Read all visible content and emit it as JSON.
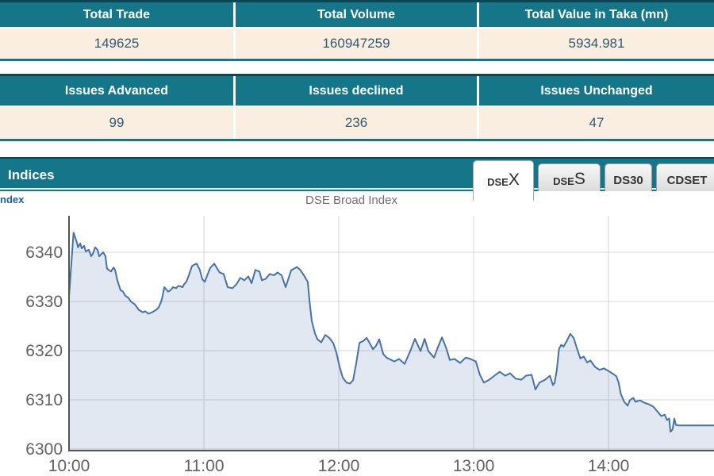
{
  "summary_table_1": {
    "headers": [
      "Total Trade",
      "Total Volume",
      "Total Value in Taka (mn)"
    ],
    "values": [
      "149625",
      "160947259",
      "5934.981"
    ]
  },
  "summary_table_2": {
    "headers": [
      "Issues Advanced",
      "Issues declined",
      "Issues Unchanged"
    ],
    "values": [
      "99",
      "236",
      "47"
    ]
  },
  "indices": {
    "title": "Indices",
    "partial_left_text": "ndex",
    "tabs": [
      {
        "label_prefix": "DSE",
        "label_suffix": "X",
        "active": true
      },
      {
        "label_prefix": "DSE",
        "label_suffix": "S",
        "active": false
      },
      {
        "label_prefix": "DS30",
        "label_suffix": "",
        "active": false
      },
      {
        "label_prefix": "CDSET",
        "label_suffix": "",
        "active": false
      }
    ]
  },
  "chart_data": {
    "type": "area",
    "title": "DSE Broad Index",
    "xlabel": "",
    "ylabel": "",
    "x_ticks": [
      {
        "label": "10:00",
        "minute": 0
      },
      {
        "label": "11:00",
        "minute": 60
      },
      {
        "label": "12:00",
        "minute": 120
      },
      {
        "label": "13:00",
        "minute": 180
      },
      {
        "label": "14:00",
        "minute": 240
      }
    ],
    "y_ticks": [
      6300,
      6310,
      6320,
      6330,
      6340
    ],
    "ylim": [
      6299.7,
      6347.6
    ],
    "xlim_minutes": [
      0,
      287
    ],
    "grid": true,
    "legend": "none",
    "colors": {
      "line": "#4572a7",
      "fill": "rgba(69,114,167,0.16)",
      "grid": "#d4d4d4",
      "axis": "#545454"
    },
    "series": [
      {
        "name": "DSE Broad Index",
        "points": [
          [
            0,
            6331.0
          ],
          [
            2,
            6344.0
          ],
          [
            3.5,
            6342.0
          ],
          [
            4,
            6341.0
          ],
          [
            5,
            6341.8
          ],
          [
            5.6,
            6340.8
          ],
          [
            6.7,
            6341.3
          ],
          [
            7.4,
            6340.2
          ],
          [
            8.8,
            6340.5
          ],
          [
            9.9,
            6339.2
          ],
          [
            10.6,
            6339.7
          ],
          [
            11.6,
            6341.0
          ],
          [
            12.7,
            6340.5
          ],
          [
            13.4,
            6339.2
          ],
          [
            14.5,
            6339.7
          ],
          [
            15.2,
            6340.0
          ],
          [
            16.2,
            6339.2
          ],
          [
            16.9,
            6336.7
          ],
          [
            17.6,
            6336.4
          ],
          [
            18.7,
            6336.1
          ],
          [
            19.8,
            6336.9
          ],
          [
            20.5,
            6336.4
          ],
          [
            21.5,
            6334.3
          ],
          [
            22.9,
            6332.3
          ],
          [
            24,
            6332.0
          ],
          [
            25,
            6331.2
          ],
          [
            26.5,
            6330.7
          ],
          [
            27.5,
            6330.0
          ],
          [
            29.3,
            6329.4
          ],
          [
            31,
            6328.3
          ],
          [
            32.8,
            6327.8
          ],
          [
            33.9,
            6328.0
          ],
          [
            35.3,
            6327.5
          ],
          [
            37,
            6327.8
          ],
          [
            38.8,
            6328.3
          ],
          [
            39.9,
            6328.8
          ],
          [
            41,
            6330.0
          ],
          [
            41.6,
            6331.1
          ],
          [
            42.4,
            6332.9
          ],
          [
            44.1,
            6332.0
          ],
          [
            45.2,
            6332.3
          ],
          [
            46.2,
            6332.9
          ],
          [
            47.6,
            6332.7
          ],
          [
            48.7,
            6333.2
          ],
          [
            50.5,
            6332.9
          ],
          [
            51.2,
            6333.5
          ],
          [
            52.2,
            6334.0
          ],
          [
            53.3,
            6335.3
          ],
          [
            54.7,
            6337.2
          ],
          [
            55.8,
            6337.5
          ],
          [
            56.8,
            6337.7
          ],
          [
            58.2,
            6336.4
          ],
          [
            59.3,
            6334.5
          ],
          [
            60.4,
            6334.0
          ],
          [
            62.8,
            6336.8
          ],
          [
            64.6,
            6337.7
          ],
          [
            67,
            6335.9
          ],
          [
            68.8,
            6335.6
          ],
          [
            70.6,
            6332.9
          ],
          [
            72.7,
            6332.7
          ],
          [
            74.5,
            6333.5
          ],
          [
            76.2,
            6334.8
          ],
          [
            78,
            6334.3
          ],
          [
            79.8,
            6335.1
          ],
          [
            81.2,
            6333.7
          ],
          [
            82.9,
            6336.4
          ],
          [
            84.7,
            6336.1
          ],
          [
            85.8,
            6334.3
          ],
          [
            87.5,
            6334.6
          ],
          [
            89.3,
            6335.6
          ],
          [
            91.1,
            6335.3
          ],
          [
            92.8,
            6335.9
          ],
          [
            94.6,
            6335.3
          ],
          [
            96.4,
            6332.9
          ],
          [
            98.8,
            6336.3
          ],
          [
            101.3,
            6337.0
          ],
          [
            102.7,
            6336.5
          ],
          [
            104.5,
            6335.3
          ],
          [
            106.2,
            6334.0
          ],
          [
            107,
            6330.0
          ],
          [
            108,
            6326.0
          ],
          [
            109.4,
            6323.5
          ],
          [
            110.5,
            6322.3
          ],
          [
            112.2,
            6321.7
          ],
          [
            114,
            6323.2
          ],
          [
            115.8,
            6322.6
          ],
          [
            117.6,
            6321.5
          ],
          [
            119,
            6319.5
          ],
          [
            120.4,
            6316.7
          ],
          [
            121.8,
            6314.5
          ],
          [
            123.5,
            6313.5
          ],
          [
            125,
            6313.3
          ],
          [
            126.4,
            6314.0
          ],
          [
            127.8,
            6317.5
          ],
          [
            129.2,
            6321.6
          ],
          [
            131,
            6322.0
          ],
          [
            132.4,
            6322.6
          ],
          [
            133.4,
            6321.8
          ],
          [
            135.2,
            6320.3
          ],
          [
            136.6,
            6321.0
          ],
          [
            138,
            6322.3
          ],
          [
            139.8,
            6319.3
          ],
          [
            141.2,
            6318.6
          ],
          [
            144.7,
            6317.8
          ],
          [
            146.8,
            6318.3
          ],
          [
            149.3,
            6317.3
          ],
          [
            151.8,
            6319.9
          ],
          [
            153.9,
            6322.4
          ],
          [
            156.4,
            6319.9
          ],
          [
            158.2,
            6322.4
          ],
          [
            159.9,
            6319.9
          ],
          [
            162.4,
            6318.6
          ],
          [
            164.1,
            6320.7
          ],
          [
            165.9,
            6322.7
          ],
          [
            167.7,
            6320.7
          ],
          [
            169.4,
            6318.1
          ],
          [
            171.5,
            6318.3
          ],
          [
            174,
            6317.5
          ],
          [
            176.5,
            6318.6
          ],
          [
            178.6,
            6318.3
          ],
          [
            181,
            6317.8
          ],
          [
            182.8,
            6315.1
          ],
          [
            184.6,
            6313.5
          ],
          [
            187,
            6314.1
          ],
          [
            189.2,
            6314.9
          ],
          [
            191.6,
            6315.7
          ],
          [
            194.1,
            6314.9
          ],
          [
            196.2,
            6315.4
          ],
          [
            198.7,
            6314.3
          ],
          [
            201.2,
            6314.1
          ],
          [
            203.3,
            6314.9
          ],
          [
            205.8,
            6315.1
          ],
          [
            207.5,
            6312.1
          ],
          [
            209.3,
            6313.5
          ],
          [
            211.8,
            6314.1
          ],
          [
            213.9,
            6314.9
          ],
          [
            215.3,
            6313.0
          ],
          [
            216.0,
            6313.4
          ],
          [
            217.0,
            6316.0
          ],
          [
            218.0,
            6320.4
          ],
          [
            219.0,
            6321.2
          ],
          [
            220.0,
            6320.8
          ],
          [
            221.5,
            6322.0
          ],
          [
            223.0,
            6323.4
          ],
          [
            224.5,
            6322.6
          ],
          [
            226.0,
            6320.4
          ],
          [
            227.5,
            6318.4
          ],
          [
            229.0,
            6318.8
          ],
          [
            230.5,
            6317.6
          ],
          [
            232.0,
            6318.0
          ],
          [
            234.0,
            6316.7
          ],
          [
            236.0,
            6316.1
          ],
          [
            238.0,
            6316.4
          ],
          [
            241.0,
            6315.6
          ],
          [
            243.5,
            6314.8
          ],
          [
            244.5,
            6313.5
          ],
          [
            245.5,
            6311.2
          ],
          [
            247.0,
            6309.6
          ],
          [
            248.5,
            6308.8
          ],
          [
            249.5,
            6309.9
          ],
          [
            251.0,
            6310.4
          ],
          [
            252.0,
            6309.6
          ],
          [
            254.0,
            6309.9
          ],
          [
            256.0,
            6309.4
          ],
          [
            258.0,
            6309.1
          ],
          [
            260.0,
            6308.6
          ],
          [
            262.0,
            6307.5
          ],
          [
            263.5,
            6306.7
          ],
          [
            265.0,
            6307.0
          ],
          [
            266.0,
            6305.9
          ],
          [
            267.0,
            6306.2
          ],
          [
            267.6,
            6303.5
          ],
          [
            268.5,
            6304.0
          ],
          [
            269.3,
            6306.2
          ],
          [
            270.0,
            6304.9
          ],
          [
            271.0,
            6304.8
          ],
          [
            287.0,
            6304.8
          ]
        ]
      }
    ]
  },
  "colors": {
    "teal_band": "#15768a",
    "dark_border": "#0c4554",
    "cream_row": "#faeee1",
    "value_text": "#2f5a70",
    "link_blue": "#1d5fa8"
  }
}
